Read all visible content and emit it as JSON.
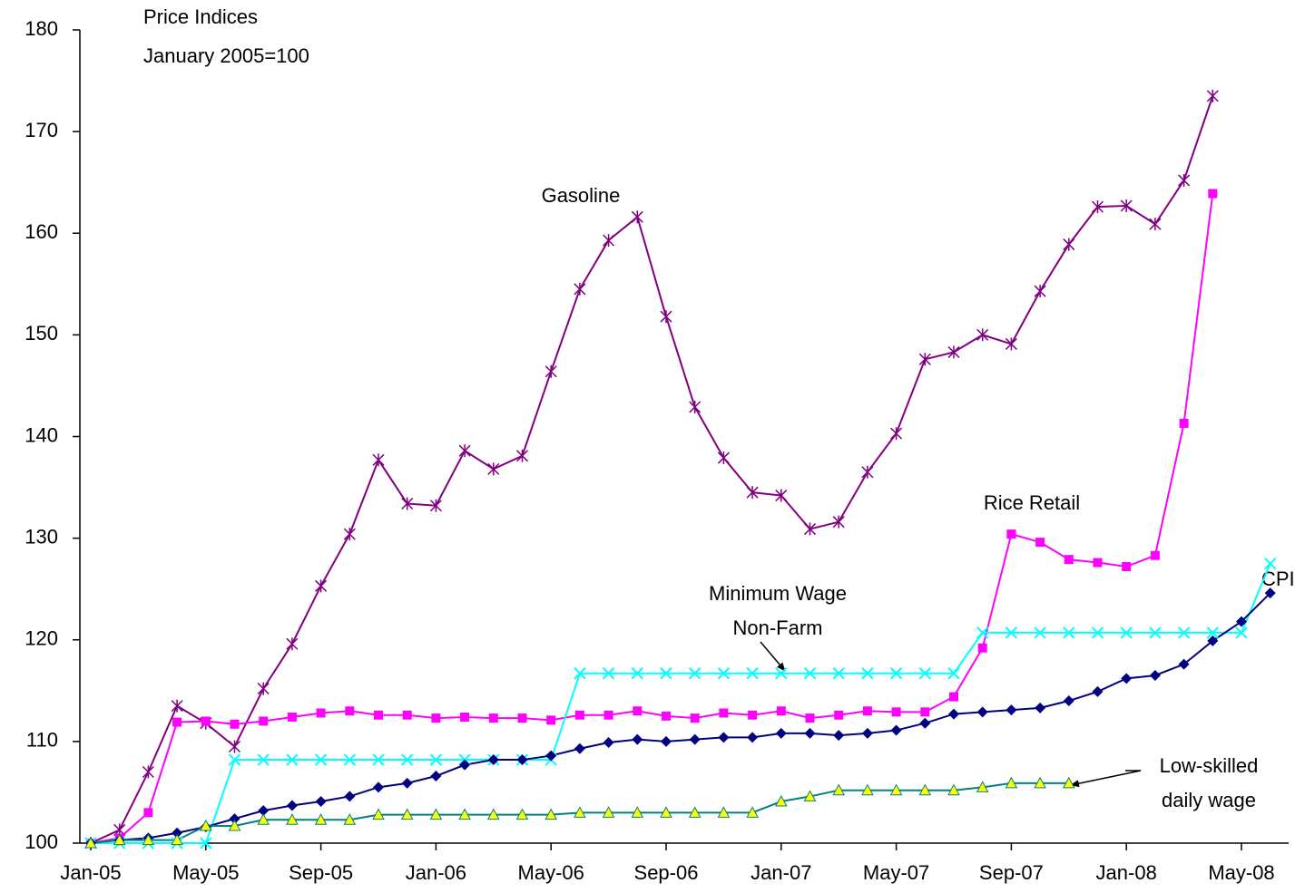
{
  "chart_data": {
    "type": "line",
    "title": "Price Indices",
    "subtitle": "January 2005=100",
    "categories": [
      "Jan-05",
      null,
      null,
      null,
      "May-05",
      null,
      null,
      null,
      "Sep-05",
      null,
      null,
      null,
      "Jan-06",
      null,
      null,
      null,
      "May-06",
      null,
      null,
      null,
      "Sep-06",
      null,
      null,
      null,
      "Jan-07",
      null,
      null,
      null,
      "May-07",
      null,
      null,
      null,
      "Sep-07",
      null,
      null,
      null,
      "Jan-08",
      null,
      null,
      null,
      "May-08",
      null
    ],
    "ylim": [
      100,
      180
    ],
    "yticks": [
      100,
      110,
      120,
      130,
      140,
      150,
      160,
      170,
      180
    ],
    "grid": false,
    "legend": false,
    "series": [
      {
        "name": "Gasoline",
        "color": "#800080",
        "marker": "asterisk",
        "values": [
          100,
          101.3,
          107,
          113.5,
          111.8,
          109.5,
          115.2,
          119.6,
          125.3,
          130.4,
          137.7,
          133.4,
          133.2,
          138.6,
          136.8,
          138.1,
          146.4,
          154.5,
          159.3,
          161.6,
          151.8,
          142.9,
          137.9,
          134.5,
          134.2,
          130.9,
          131.6,
          136.5,
          140.3,
          147.6,
          148.3,
          150,
          149.1,
          154.3,
          158.9,
          162.6,
          162.7,
          160.9,
          165.2,
          173.5,
          null,
          null
        ]
      },
      {
        "name": "Rice Retail",
        "color": "#ff00ff",
        "marker": "square",
        "values": [
          100,
          100.5,
          103,
          111.9,
          112,
          111.7,
          112,
          112.4,
          112.8,
          113,
          112.6,
          112.6,
          112.3,
          112.4,
          112.3,
          112.3,
          112.1,
          112.6,
          112.6,
          113,
          112.5,
          112.3,
          112.8,
          112.6,
          113,
          112.3,
          112.6,
          113,
          112.9,
          112.9,
          114.4,
          119.2,
          130.4,
          129.6,
          127.9,
          127.6,
          127.2,
          128.3,
          141.3,
          163.9,
          null,
          null
        ]
      },
      {
        "name": "Minimum Wage Non-Farm",
        "color": "#00ffff",
        "marker": "cross",
        "values": [
          100,
          100,
          100,
          100,
          100,
          108.2,
          108.2,
          108.2,
          108.2,
          108.2,
          108.2,
          108.2,
          108.2,
          108.2,
          108.2,
          108.2,
          108.2,
          116.7,
          116.7,
          116.7,
          116.7,
          116.7,
          116.7,
          116.7,
          116.7,
          116.7,
          116.7,
          116.7,
          116.7,
          116.7,
          116.7,
          120.7,
          120.7,
          120.7,
          120.7,
          120.7,
          120.7,
          120.7,
          120.7,
          120.7,
          120.7,
          127.5
        ]
      },
      {
        "name": "CPI",
        "color": "#000080",
        "marker": "diamond",
        "values": [
          100,
          100.3,
          100.5,
          101,
          101.6,
          102.4,
          103.2,
          103.7,
          104.1,
          104.6,
          105.5,
          105.9,
          106.6,
          107.7,
          108.2,
          108.2,
          108.6,
          109.3,
          109.9,
          110.2,
          110,
          110.2,
          110.4,
          110.4,
          110.8,
          110.8,
          110.6,
          110.8,
          111.1,
          111.8,
          112.7,
          112.9,
          113.1,
          113.3,
          114,
          114.9,
          116.2,
          116.5,
          117.6,
          119.9,
          121.8,
          124.6
        ]
      },
      {
        "name": "Low-skilled daily wage",
        "color": "#008080",
        "marker": "triangle",
        "marker_fill": "#ffff00",
        "values": [
          100,
          100.3,
          100.3,
          100.3,
          101.7,
          101.7,
          102.3,
          102.3,
          102.3,
          102.3,
          102.8,
          102.8,
          102.8,
          102.8,
          102.8,
          102.8,
          102.8,
          103,
          103,
          103,
          103,
          103,
          103,
          103,
          104.1,
          104.6,
          105.2,
          105.2,
          105.2,
          105.2,
          105.2,
          105.5,
          105.9,
          105.9,
          105.9,
          null,
          null,
          null,
          null,
          null,
          null,
          null
        ]
      }
    ],
    "annotations": [
      "Gasoline",
      "Rice Retail",
      "CPI",
      [
        "Minimum Wage",
        "Non-Farm"
      ],
      [
        "Low-skilled",
        "daily wage"
      ]
    ]
  }
}
